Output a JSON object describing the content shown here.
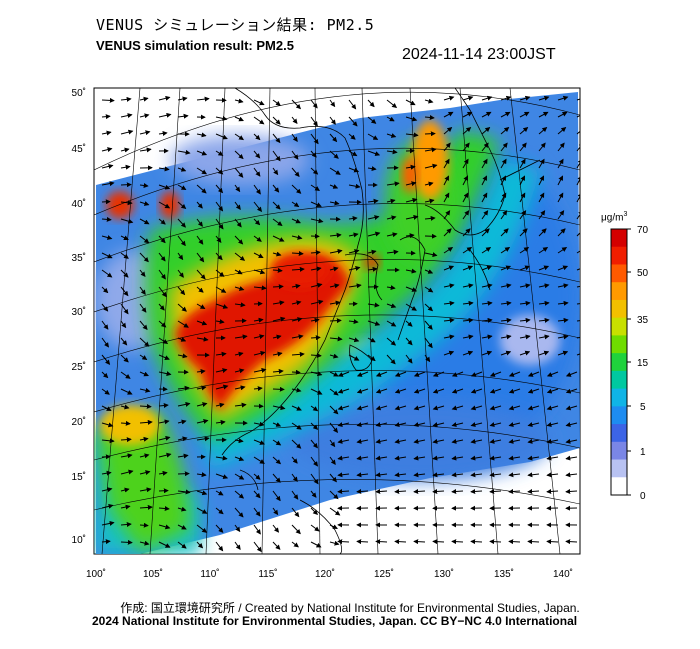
{
  "header": {
    "title_jp": "VENUS シミュレーション結果: PM2.5",
    "title_en": "VENUS simulation result: PM2.5",
    "timestamp": "2024-11-14 23:00JST"
  },
  "map": {
    "lon_ticks": [
      "100˚",
      "105˚",
      "110˚",
      "115˚",
      "120˚",
      "125˚",
      "130˚",
      "135˚",
      "140˚"
    ],
    "lat_ticks": [
      "50˚",
      "45˚",
      "40˚",
      "35˚",
      "30˚",
      "25˚",
      "20˚",
      "15˚",
      "10˚"
    ],
    "colorbar": {
      "unit": "μg/m",
      "unit_sup": "3",
      "labels": [
        "70",
        "50",
        "35",
        "15",
        "5",
        "1",
        "0"
      ],
      "colors": [
        "#d40000",
        "#f01e00",
        "#ff5a00",
        "#ff9a00",
        "#f2c000",
        "#c8e000",
        "#6fdc00",
        "#1fd23c",
        "#00c8a0",
        "#10b4e6",
        "#1e8cf0",
        "#3c64e6",
        "#7a86e6",
        "#b8c2f2",
        "#ffffff"
      ]
    },
    "colors": {
      "high": "#e01800",
      "mid": "#2ed02a",
      "low": "#2f8fe8",
      "bg": "#4a8fe0"
    }
  },
  "footer": {
    "credit_line1": "作成: 国立環境研究所 / Created by National Institute for Environmental Studies, Japan.",
    "credit_line2": "2024 National Institute for Environmental Studies, Japan. CC BY−NC 4.0 International"
  }
}
